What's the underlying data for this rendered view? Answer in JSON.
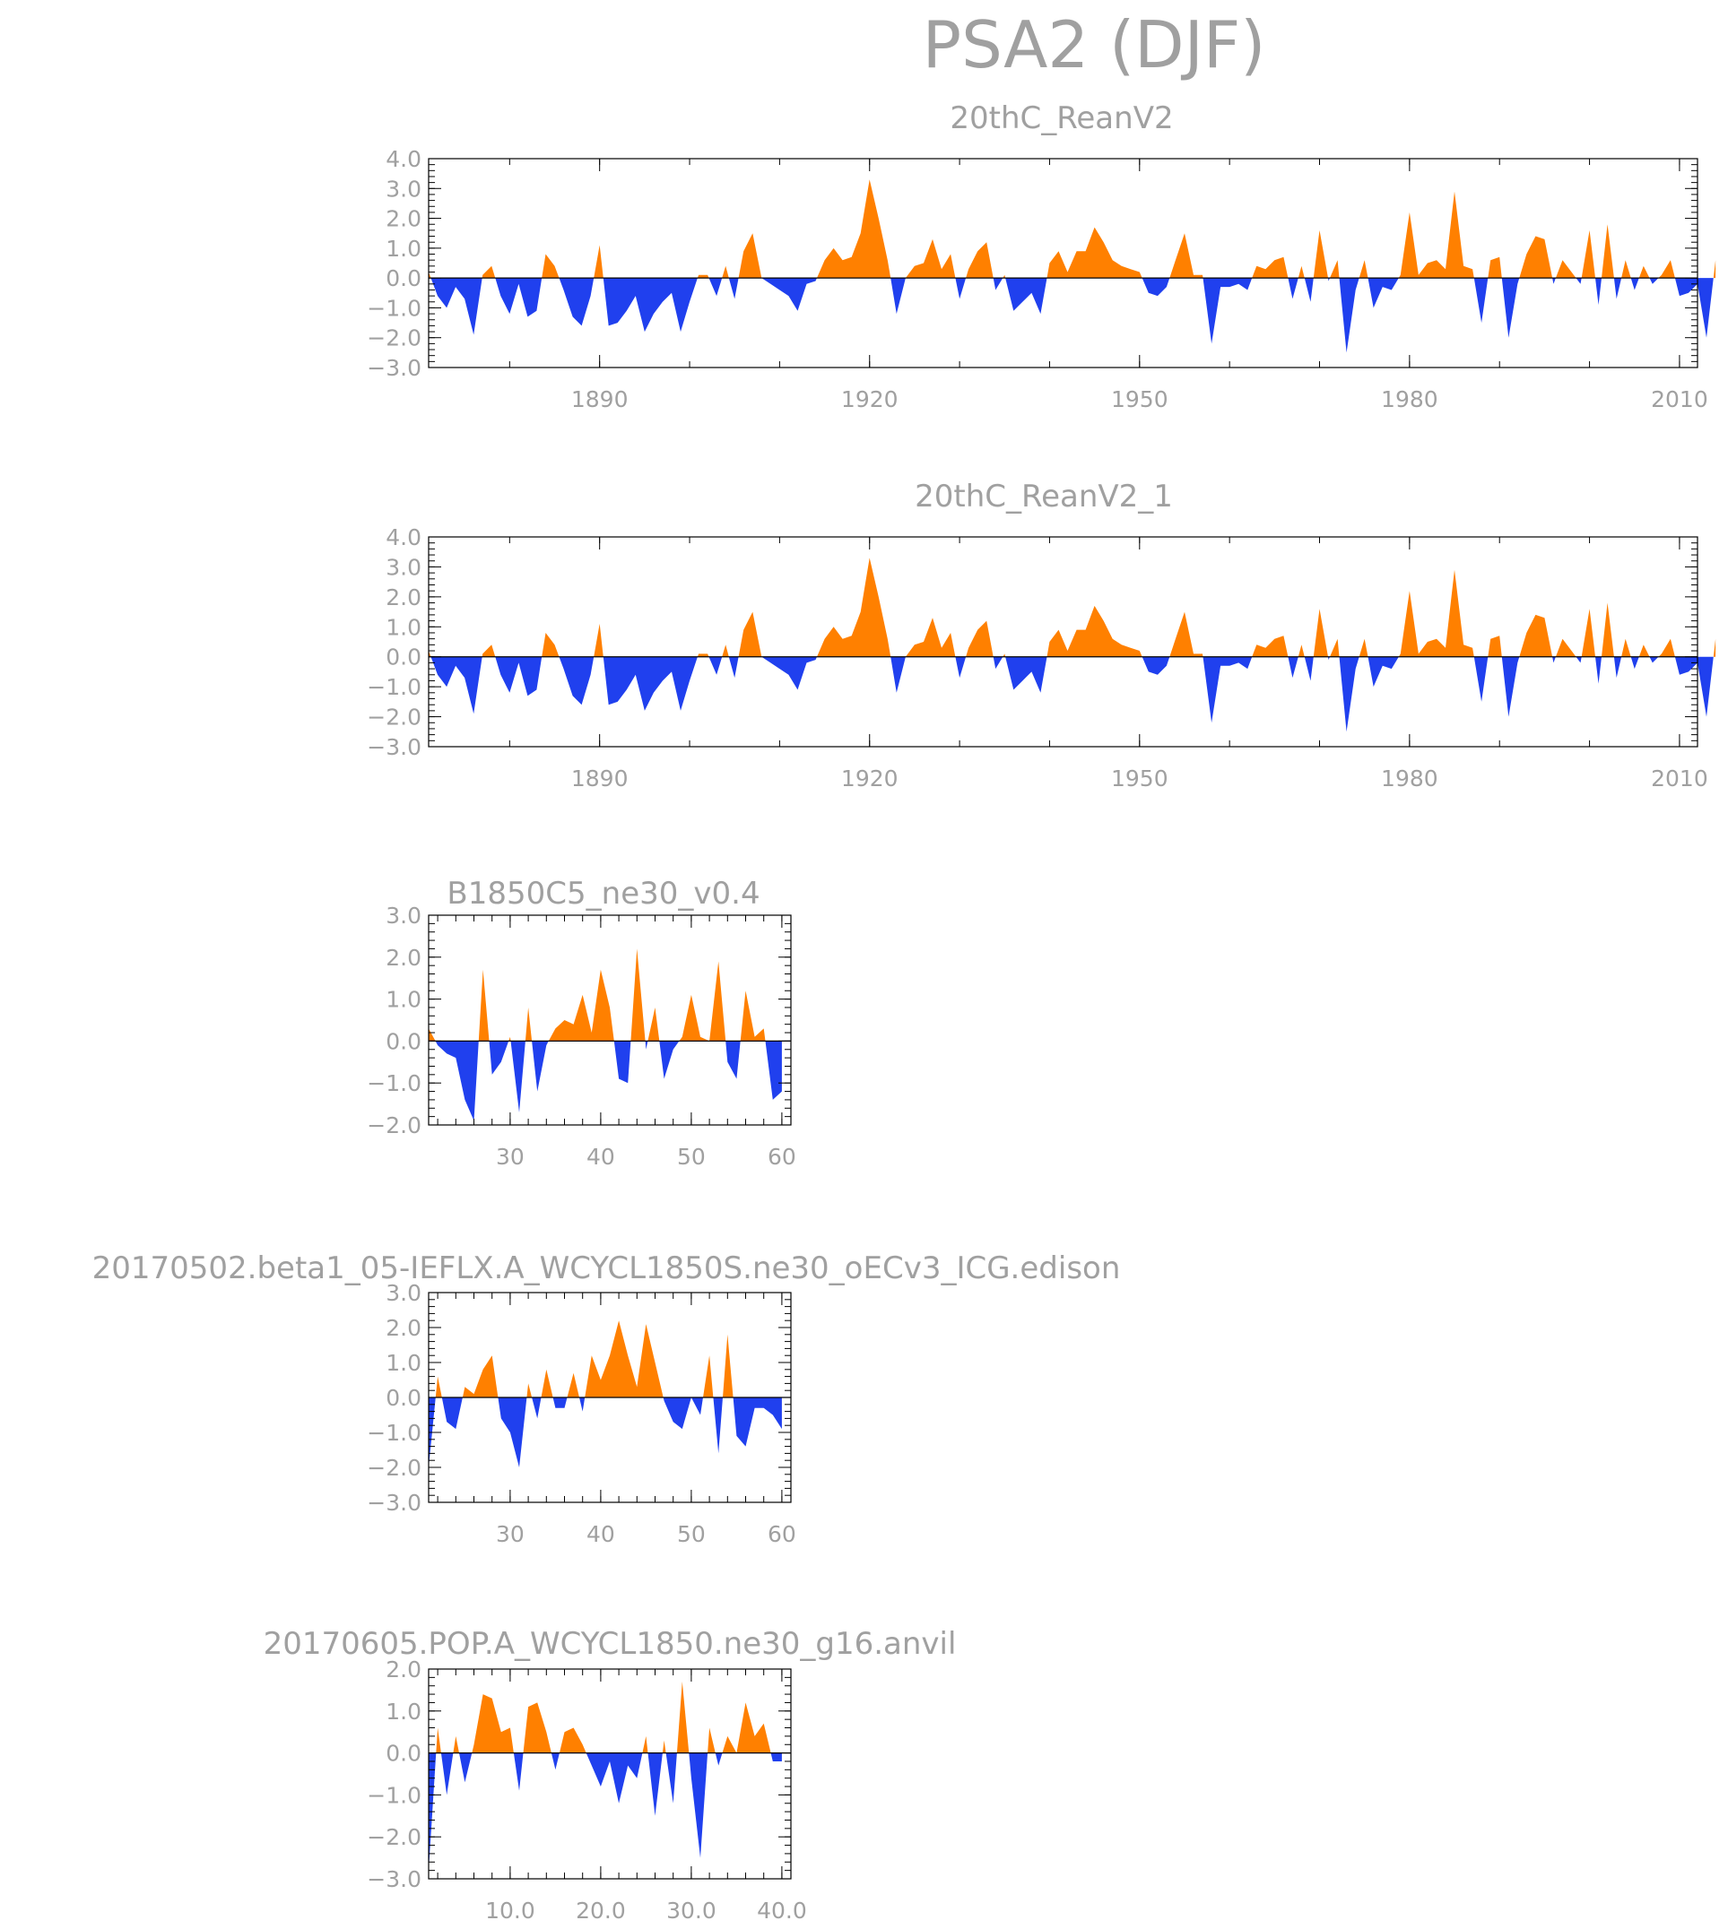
{
  "figure_title": "PSA2 (DJF)",
  "colors": {
    "positive": "#ff8000",
    "negative": "#2040ee",
    "text": "#a0a0a0"
  },
  "chart_data": [
    {
      "type": "area",
      "title": "20thC_ReanV2",
      "x_start": 1871,
      "x_step": 1,
      "xlim": [
        1871,
        2012
      ],
      "ylim": [
        -3.0,
        4.0
      ],
      "xticks": [
        1890,
        1920,
        1950,
        1980,
        2010
      ],
      "yticks": [
        -3.0,
        -2.0,
        -1.0,
        0.0,
        1.0,
        2.0,
        3.0,
        4.0
      ],
      "xtick_format": 0,
      "ytick_format": 1,
      "values": [
        0.2,
        -0.6,
        -1.0,
        -0.3,
        -0.7,
        -1.9,
        0.1,
        0.4,
        -0.6,
        -1.2,
        -0.2,
        -1.3,
        -1.1,
        0.8,
        0.4,
        -0.4,
        -1.3,
        -1.6,
        -0.6,
        1.1,
        -1.6,
        -1.5,
        -1.1,
        -0.6,
        -1.8,
        -1.2,
        -0.8,
        -0.5,
        -1.8,
        -0.8,
        0.1,
        0.1,
        -0.6,
        0.4,
        -0.7,
        0.9,
        1.5,
        0.0,
        -0.2,
        -0.4,
        -0.6,
        -1.1,
        -0.2,
        -0.1,
        0.6,
        1.0,
        0.6,
        0.7,
        1.5,
        3.3,
        2.0,
        0.6,
        -1.2,
        0.0,
        0.4,
        0.5,
        1.3,
        0.3,
        0.8,
        -0.7,
        0.3,
        0.9,
        1.2,
        -0.4,
        0.1,
        -1.1,
        -0.8,
        -0.5,
        -1.2,
        0.5,
        0.9,
        0.2,
        0.9,
        0.9,
        1.7,
        1.2,
        0.6,
        0.4,
        0.3,
        0.2,
        -0.5,
        -0.6,
        -0.3,
        0.6,
        1.5,
        0.1,
        0.1,
        -2.2,
        -0.3,
        -0.3,
        -0.2,
        -0.4,
        0.4,
        0.3,
        0.6,
        0.7,
        -0.7,
        0.4,
        -0.8,
        1.6,
        -0.1,
        0.6,
        -2.5,
        -0.4,
        0.6,
        -1.0,
        -0.3,
        -0.4,
        0.1,
        2.2,
        0.1,
        0.5,
        0.6,
        0.3,
        2.9,
        0.4,
        0.3,
        -1.5,
        0.6,
        0.7,
        -2.0,
        -0.2,
        0.8,
        1.4,
        1.3,
        -0.2,
        0.6,
        0.2,
        -0.2,
        1.6,
        -0.9,
        1.8,
        -0.7,
        0.6,
        -0.4,
        0.4,
        -0.2,
        0.1,
        0.6,
        -0.6,
        -0.5,
        -0.2,
        -2.0,
        0.6
      ]
    },
    {
      "type": "area",
      "title": "20thC_ReanV2_1",
      "x_start": 1871,
      "x_step": 1,
      "xlim": [
        1871,
        2012
      ],
      "ylim": [
        -3.0,
        4.0
      ],
      "xticks": [
        1890,
        1920,
        1950,
        1980,
        2010
      ],
      "yticks": [
        -3.0,
        -2.0,
        -1.0,
        0.0,
        1.0,
        2.0,
        3.0,
        4.0
      ],
      "xtick_format": 0,
      "ytick_format": 1,
      "values": [
        0.2,
        -0.6,
        -1.0,
        -0.3,
        -0.7,
        -1.9,
        0.1,
        0.4,
        -0.6,
        -1.2,
        -0.2,
        -1.3,
        -1.1,
        0.8,
        0.4,
        -0.4,
        -1.3,
        -1.6,
        -0.6,
        1.1,
        -1.6,
        -1.5,
        -1.1,
        -0.6,
        -1.8,
        -1.2,
        -0.8,
        -0.5,
        -1.8,
        -0.8,
        0.1,
        0.1,
        -0.6,
        0.4,
        -0.7,
        0.9,
        1.5,
        0.0,
        -0.2,
        -0.4,
        -0.6,
        -1.1,
        -0.2,
        -0.1,
        0.6,
        1.0,
        0.6,
        0.7,
        1.5,
        3.3,
        2.0,
        0.6,
        -1.2,
        0.0,
        0.4,
        0.5,
        1.3,
        0.3,
        0.8,
        -0.7,
        0.3,
        0.9,
        1.2,
        -0.4,
        0.1,
        -1.1,
        -0.8,
        -0.5,
        -1.2,
        0.5,
        0.9,
        0.2,
        0.9,
        0.9,
        1.7,
        1.2,
        0.6,
        0.4,
        0.3,
        0.2,
        -0.5,
        -0.6,
        -0.3,
        0.6,
        1.5,
        0.1,
        0.1,
        -2.2,
        -0.3,
        -0.3,
        -0.2,
        -0.4,
        0.4,
        0.3,
        0.6,
        0.7,
        -0.7,
        0.4,
        -0.8,
        1.6,
        -0.1,
        0.6,
        -2.5,
        -0.4,
        0.6,
        -1.0,
        -0.3,
        -0.4,
        0.1,
        2.2,
        0.1,
        0.5,
        0.6,
        0.3,
        2.9,
        0.4,
        0.3,
        -1.5,
        0.6,
        0.7,
        -2.0,
        -0.2,
        0.8,
        1.4,
        1.3,
        -0.2,
        0.6,
        0.2,
        -0.2,
        1.6,
        -0.9,
        1.8,
        -0.7,
        0.6,
        -0.4,
        0.4,
        -0.2,
        0.1,
        0.6,
        -0.6,
        -0.5,
        -0.2,
        -2.0,
        0.6
      ]
    },
    {
      "type": "area",
      "title": "B1850C5_ne30_v0.4",
      "x_start": 21,
      "x_step": 1,
      "xlim": [
        21,
        61
      ],
      "ylim": [
        -2.0,
        3.0
      ],
      "xticks": [
        30,
        40,
        50,
        60
      ],
      "yticks": [
        -2.0,
        -1.0,
        0.0,
        1.0,
        2.0,
        3.0
      ],
      "xtick_format": 0,
      "ytick_format": 1,
      "values": [
        0.3,
        -0.1,
        -0.3,
        -0.4,
        -1.4,
        -1.9,
        1.7,
        -0.8,
        -0.5,
        0.1,
        -1.7,
        0.8,
        -1.2,
        -0.1,
        0.3,
        0.5,
        0.4,
        1.1,
        0.2,
        1.7,
        0.8,
        -0.9,
        -1.0,
        2.2,
        -0.2,
        0.8,
        -0.9,
        -0.2,
        0.1,
        1.1,
        0.1,
        0.0,
        1.9,
        -0.5,
        -0.9,
        1.2,
        0.1,
        0.3,
        -1.4,
        -1.2
      ]
    },
    {
      "type": "area",
      "title": "20170502.beta1_05-IEFLX.A_WCYCL1850S.ne30_oECv3_ICG.edison",
      "x_start": 21,
      "x_step": 1,
      "xlim": [
        21,
        61
      ],
      "ylim": [
        -3.0,
        3.0
      ],
      "xticks": [
        30,
        40,
        50,
        60
      ],
      "yticks": [
        -3.0,
        -2.0,
        -1.0,
        0.0,
        1.0,
        2.0,
        3.0
      ],
      "xtick_format": 0,
      "ytick_format": 1,
      "values": [
        -2.0,
        0.6,
        -0.7,
        -0.9,
        0.3,
        0.1,
        0.8,
        1.2,
        -0.6,
        -1.0,
        -2.0,
        0.4,
        -0.6,
        0.8,
        -0.3,
        -0.3,
        0.7,
        -0.4,
        1.2,
        0.5,
        1.2,
        2.2,
        1.2,
        0.3,
        2.1,
        1.0,
        -0.1,
        -0.7,
        -0.9,
        0.0,
        -0.5,
        1.2,
        -1.6,
        1.8,
        -1.1,
        -1.4,
        -0.3,
        -0.3,
        -0.5,
        -0.9
      ]
    },
    {
      "type": "area",
      "title": "20170605.POP.A_WCYCL1850.ne30_g16.anvil",
      "x_start": 1,
      "x_step": 1,
      "xlim": [
        1,
        41
      ],
      "ylim": [
        -3.0,
        2.0
      ],
      "xticks": [
        10.0,
        20.0,
        30.0,
        40.0
      ],
      "yticks": [
        -3.0,
        -2.0,
        -1.0,
        0.0,
        1.0,
        2.0
      ],
      "xtick_format": 1,
      "ytick_format": 1,
      "values": [
        -2.8,
        0.6,
        -1.0,
        0.4,
        -0.7,
        0.2,
        1.4,
        1.3,
        0.5,
        0.6,
        -0.9,
        1.1,
        1.2,
        0.5,
        -0.4,
        0.5,
        0.6,
        0.2,
        -0.3,
        -0.8,
        -0.2,
        -1.2,
        -0.3,
        -0.6,
        0.4,
        -1.5,
        0.3,
        -1.2,
        1.7,
        -0.6,
        -2.5,
        0.6,
        -0.3,
        0.4,
        0.0,
        1.2,
        0.4,
        0.7,
        -0.2,
        -0.2
      ]
    }
  ]
}
